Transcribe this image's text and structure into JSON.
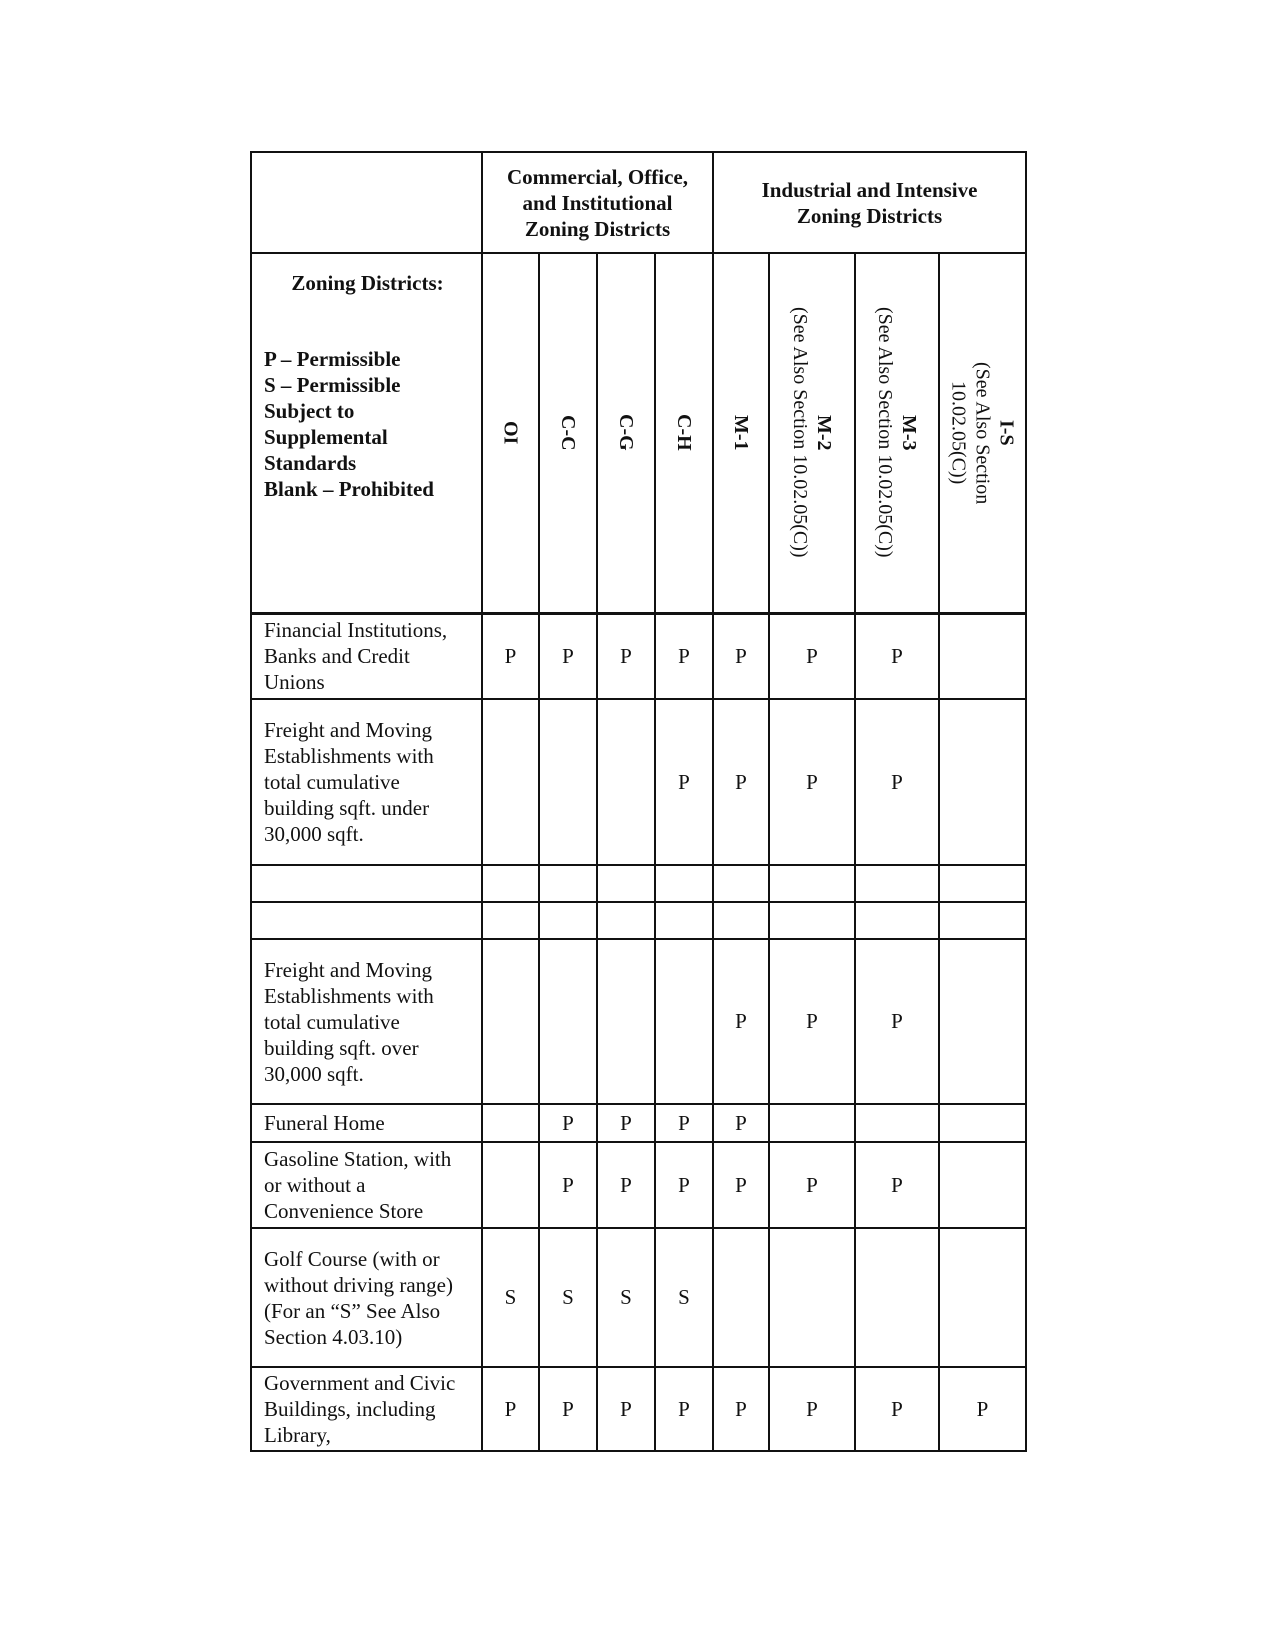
{
  "header": {
    "groups": [
      "Commercial, Office, and Institutional Zoning Districts",
      "Industrial and Intensive Zoning Districts"
    ],
    "legend_title": "Zoning Districts:",
    "legend_lines": [
      "P – Permissible",
      "S – Permissible Subject to Supplemental Standards",
      "Blank – Prohibited"
    ],
    "columns": [
      {
        "name": "OI"
      },
      {
        "name": "C-C"
      },
      {
        "name": "C-G"
      },
      {
        "name": "C-H"
      },
      {
        "name": "M-1"
      },
      {
        "name": "M-2",
        "note": "(See Also Section 10.02.05(C))"
      },
      {
        "name": "M-3",
        "note": "(See Also Section 10.02.05(C))"
      },
      {
        "name": "I-S",
        "note": "(See Also Section 10.02.05(C))"
      }
    ]
  },
  "rows": [
    {
      "use": "Financial Institutions, Banks and Credit Unions",
      "values": [
        "P",
        "P",
        "P",
        "P",
        "P",
        "P",
        "P",
        ""
      ]
    },
    {
      "use": "Freight and Moving Establishments with total cumulative building sqft. under 30,000 sqft.",
      "values": [
        "",
        "",
        "",
        "P",
        "P",
        "P",
        "P",
        ""
      ]
    },
    {
      "use": "",
      "values": [
        "",
        "",
        "",
        "",
        "",
        "",
        "",
        ""
      ]
    },
    {
      "use": "",
      "values": [
        "",
        "",
        "",
        "",
        "",
        "",
        "",
        ""
      ]
    },
    {
      "use": "Freight and Moving Establishments with total cumulative building sqft. over 30,000 sqft.",
      "values": [
        "",
        "",
        "",
        "",
        "P",
        "P",
        "P",
        ""
      ]
    },
    {
      "use": "Funeral Home",
      "values": [
        "",
        "P",
        "P",
        "P",
        "P",
        "",
        "",
        ""
      ]
    },
    {
      "use": "Gasoline Station, with or without a Convenience Store",
      "values": [
        "",
        "P",
        "P",
        "P",
        "P",
        "P",
        "P",
        ""
      ]
    },
    {
      "use": "Golf Course (with or without driving range) (For an “S” See Also Section 4.03.10)",
      "values": [
        "S",
        "S",
        "S",
        "S",
        "",
        "",
        "",
        ""
      ]
    },
    {
      "use": "Government and Civic Buildings, including Library,",
      "values": [
        "P",
        "P",
        "P",
        "P",
        "P",
        "P",
        "P",
        "P"
      ]
    }
  ]
}
